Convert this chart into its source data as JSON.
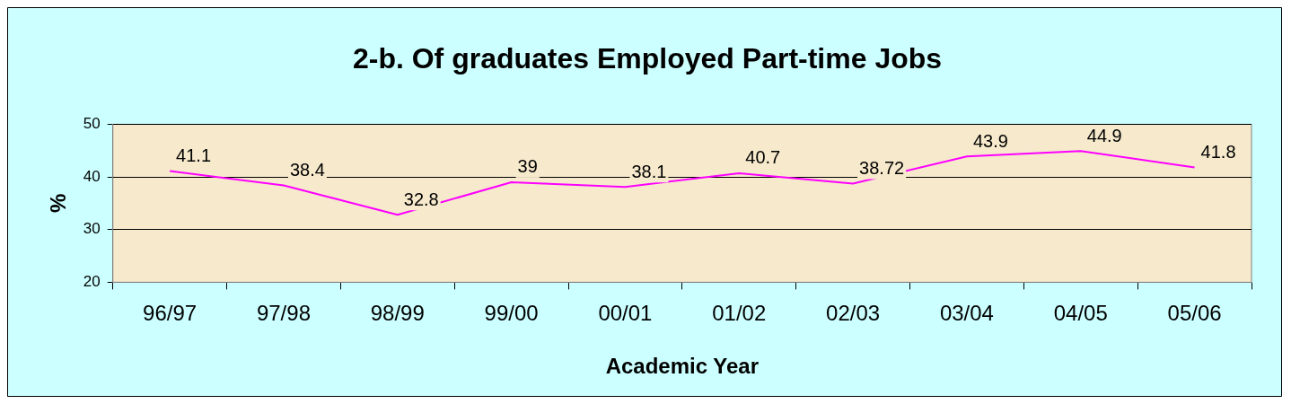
{
  "chart_data": {
    "type": "line",
    "title": "2-b. Of graduates Employed Part-time Jobs",
    "xlabel": "Academic Year",
    "ylabel": "%",
    "categories": [
      "96/97",
      "97/98",
      "98/99",
      "99/00",
      "00/01",
      "01/02",
      "02/03",
      "03/04",
      "04/05",
      "05/06"
    ],
    "series": [
      {
        "color": "#ff00ff",
        "values": [
          41.1,
          38.4,
          32.8,
          39,
          38.1,
          40.7,
          38.72,
          43.9,
          44.9,
          41.8
        ]
      }
    ],
    "ylim": [
      20,
      50
    ],
    "yticks": [
      20,
      30,
      40,
      50
    ],
    "grid": "y",
    "legend": false,
    "marker": "none",
    "line_style": "solid",
    "data_labels": true
  }
}
